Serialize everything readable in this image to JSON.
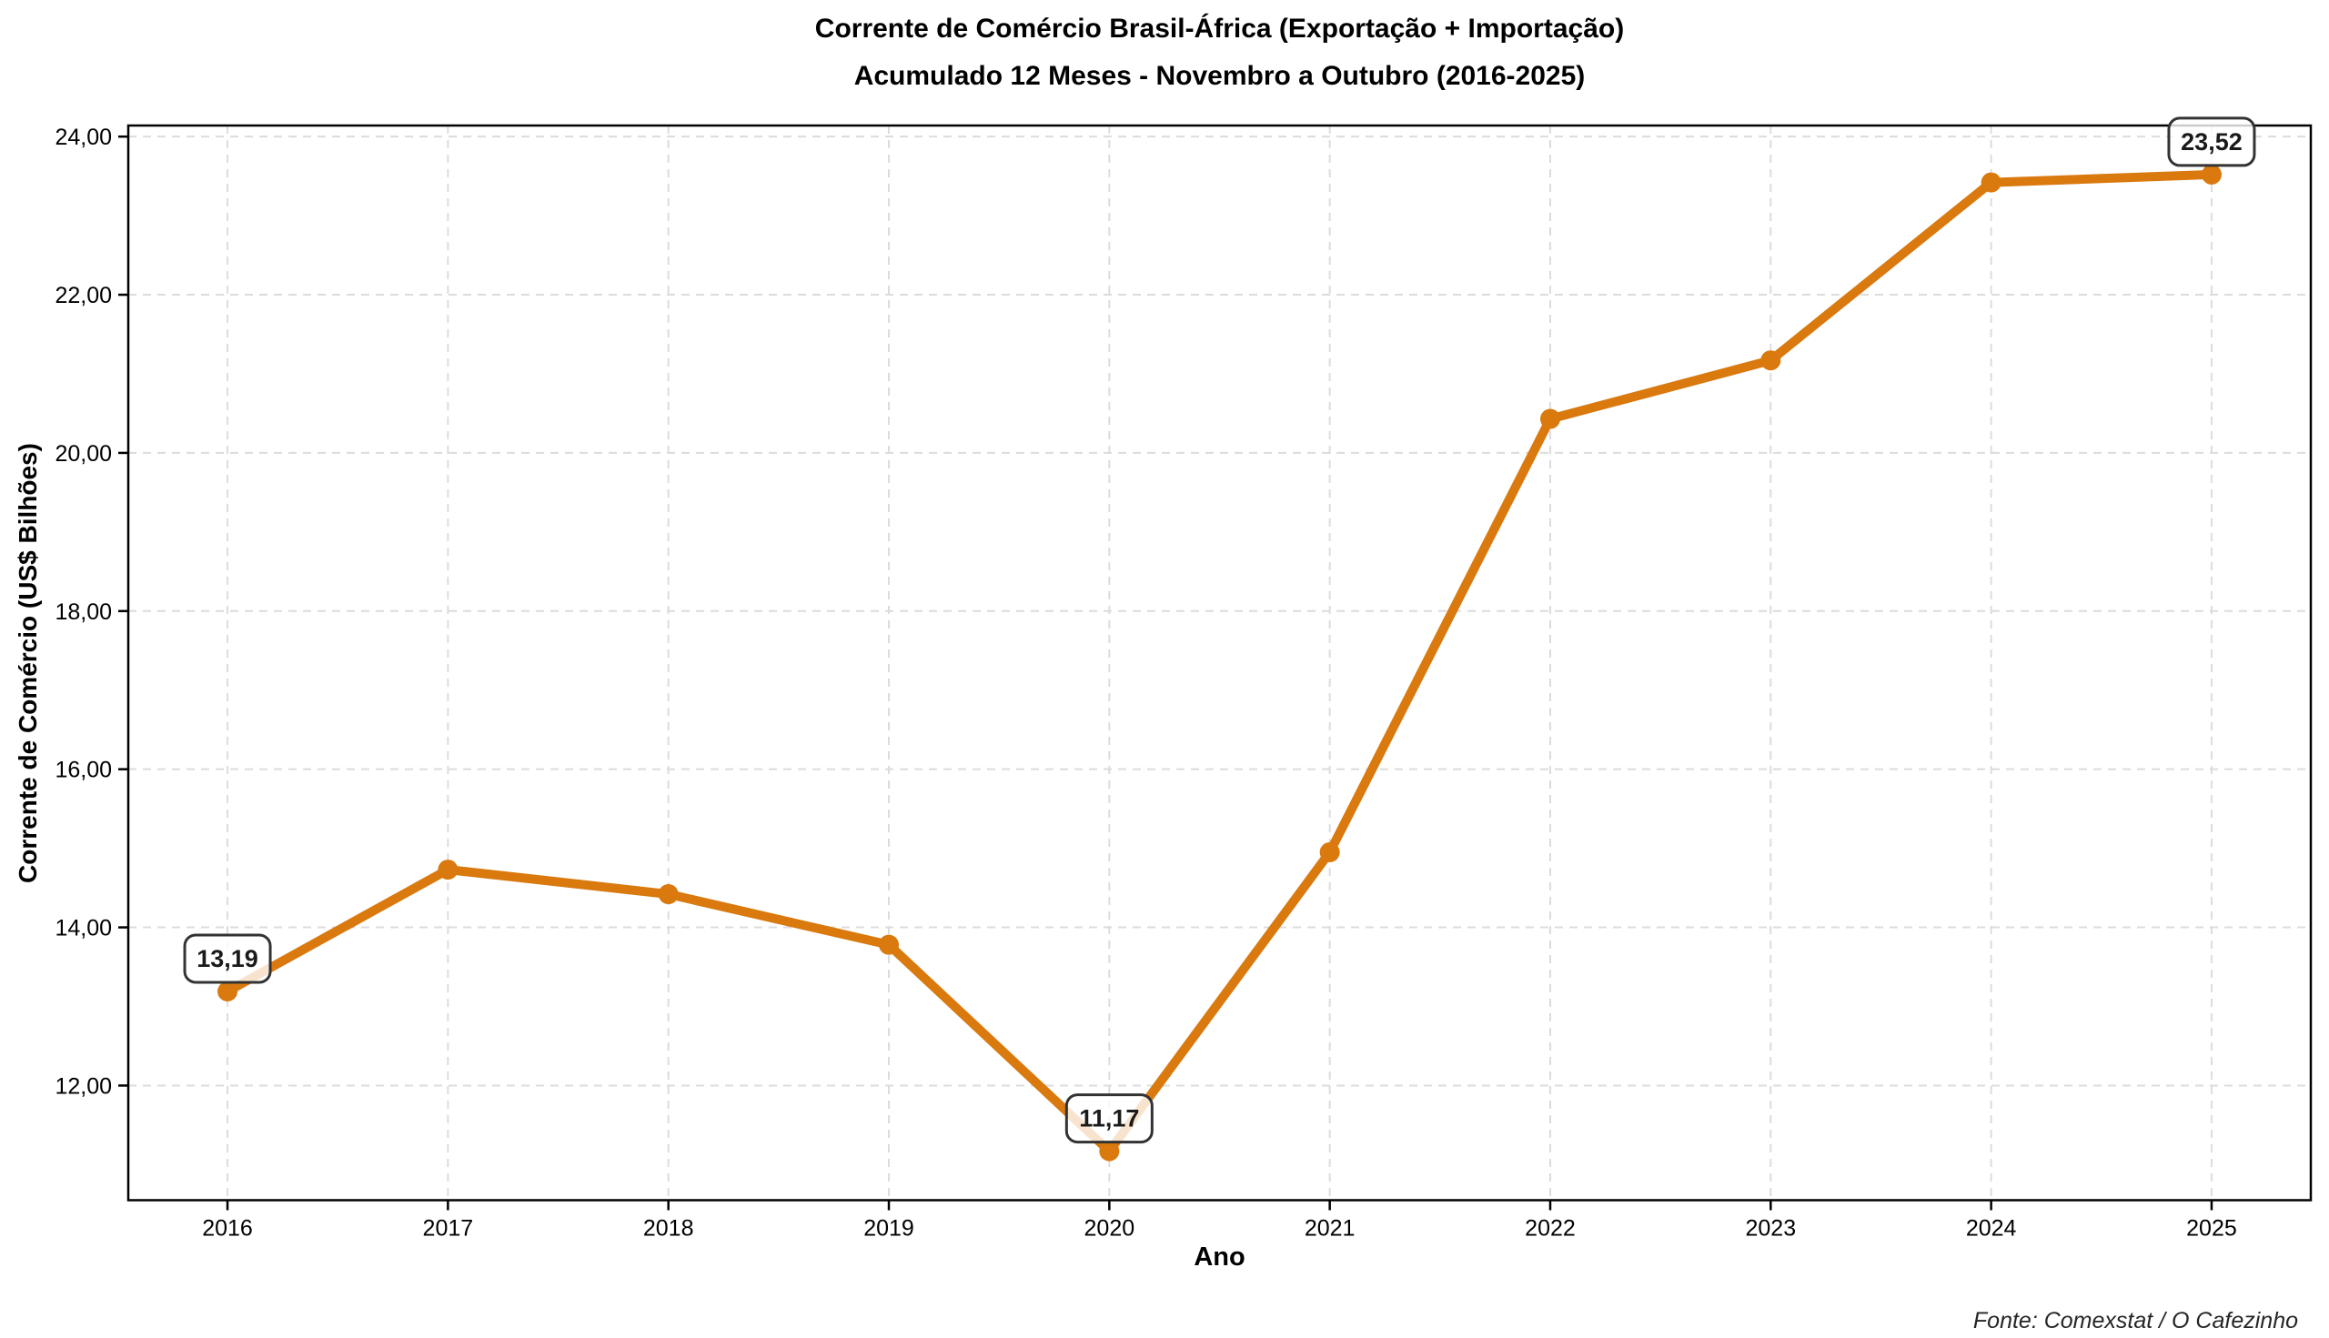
{
  "chart_data": {
    "type": "line",
    "title": "Corrente de Comércio Brasil-África (Exportação + Importação)",
    "subtitle": "Acumulado 12 Meses - Novembro a Outubro (2016-2025)",
    "xlabel": "Ano",
    "ylabel": "Corrente de Comércio (US$ Bilhões)",
    "source_note": "Fonte: Comexstat / O Cafezinho",
    "categories": [
      2016,
      2017,
      2018,
      2019,
      2020,
      2021,
      2022,
      2023,
      2024,
      2025
    ],
    "values": [
      13.19,
      14.73,
      14.42,
      13.78,
      11.17,
      14.95,
      20.43,
      21.17,
      23.42,
      23.52
    ],
    "x_tick_labels": [
      "2016",
      "2017",
      "2018",
      "2019",
      "2020",
      "2021",
      "2022",
      "2023",
      "2024",
      "2025"
    ],
    "y_ticks": [
      {
        "value": 12,
        "label": "12,00"
      },
      {
        "value": 14,
        "label": "14,00"
      },
      {
        "value": 16,
        "label": "16,00"
      },
      {
        "value": 18,
        "label": "18,00"
      },
      {
        "value": 20,
        "label": "20,00"
      },
      {
        "value": 22,
        "label": "22,00"
      },
      {
        "value": 24,
        "label": "24,00"
      }
    ],
    "annotations": [
      {
        "x": 2016,
        "y": 13.19,
        "label": "13,19"
      },
      {
        "x": 2020,
        "y": 11.17,
        "label": "11,17"
      },
      {
        "x": 2025,
        "y": 23.52,
        "label": "23,52"
      }
    ],
    "xlim": [
      2015.55,
      2025.45
    ],
    "ylim": [
      10.55,
      24.14
    ],
    "grid": true,
    "legend_position": "none",
    "line_color": "#D9790E",
    "marker_color": "#D9790E",
    "grid_color": "#DCDCDC",
    "spine_color": "#000000",
    "tick_label_color": "#000000",
    "annotation_border_color": "#333333",
    "annotation_text_color": "#1A1A1A",
    "annotation_bg_color": "#FFFFFF"
  }
}
